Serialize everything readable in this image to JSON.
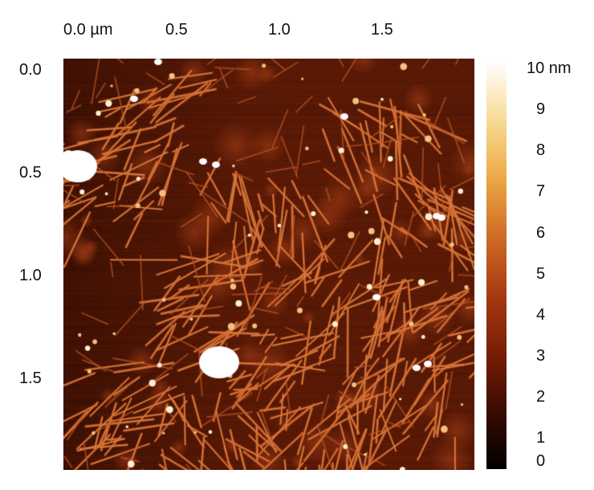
{
  "figure": {
    "x_axis": {
      "ticks": [
        "0.0 µm",
        "0.5",
        "1.0",
        "1.5"
      ]
    },
    "y_axis": {
      "ticks": [
        "0.0",
        "0.5",
        "1.0",
        "1.5"
      ]
    },
    "colorbar": {
      "ticks": [
        "10 nm",
        "9",
        "8",
        "7",
        "6",
        "5",
        "4",
        "3",
        "2",
        "1",
        "0"
      ],
      "colormap": [
        "#000000",
        "#3a0c02",
        "#7a1e05",
        "#a83a10",
        "#d06c25",
        "#eca845",
        "#f8dc95",
        "#ffffff"
      ]
    },
    "image": {
      "scan_size_um": 2.0,
      "background_color": "#5a1a06",
      "blob_color": "#ffffff"
    }
  }
}
